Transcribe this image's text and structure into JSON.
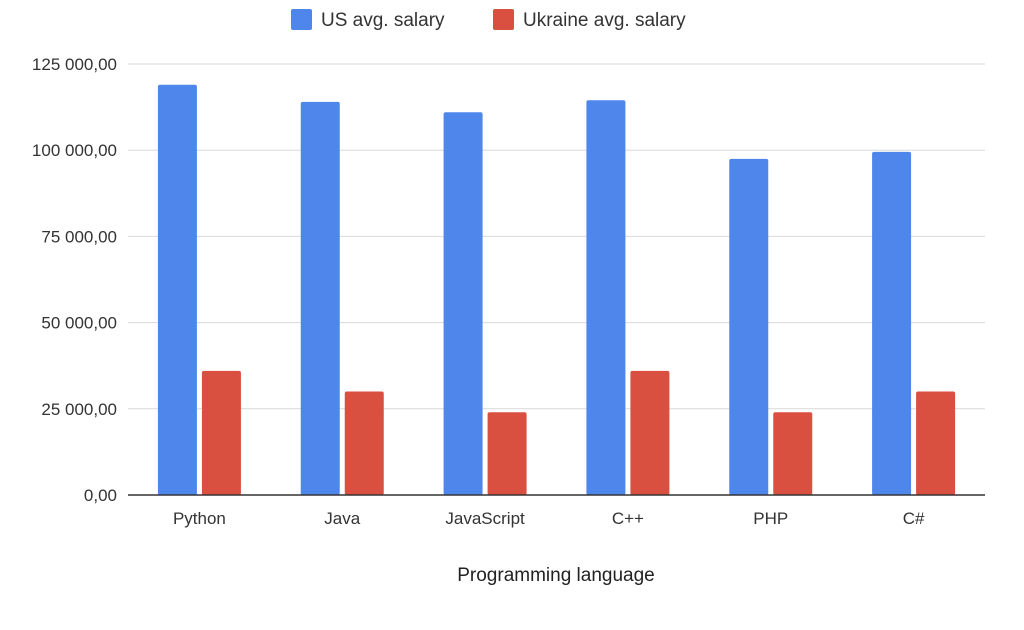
{
  "chart_data": {
    "type": "bar",
    "title": "",
    "xlabel": "Programming language",
    "ylabel": "",
    "categories": [
      "Python",
      "Java",
      "JavaScript",
      "C++",
      "PHP",
      "C#"
    ],
    "series": [
      {
        "name": "US avg. salary",
        "color": "#4f86ec",
        "values": [
          119000,
          114000,
          111000,
          114500,
          97500,
          99500
        ]
      },
      {
        "name": "Ukraine avg. salary",
        "color": "#d95040",
        "values": [
          36000,
          30000,
          24000,
          36000,
          24000,
          30000
        ]
      }
    ],
    "ylim": [
      0,
      125000
    ],
    "yticks": [
      {
        "value": 0,
        "label": "0,00"
      },
      {
        "value": 25000,
        "label": "25 000,00"
      },
      {
        "value": 50000,
        "label": "50 000,00"
      },
      {
        "value": 75000,
        "label": "75 000,00"
      },
      {
        "value": 100000,
        "label": "100 000,00"
      },
      {
        "value": 125000,
        "label": "125 000,00"
      }
    ],
    "grid": true,
    "legend_position": "top",
    "colors": {
      "gridline": "#d9d9d9",
      "axis": "#333333"
    }
  }
}
